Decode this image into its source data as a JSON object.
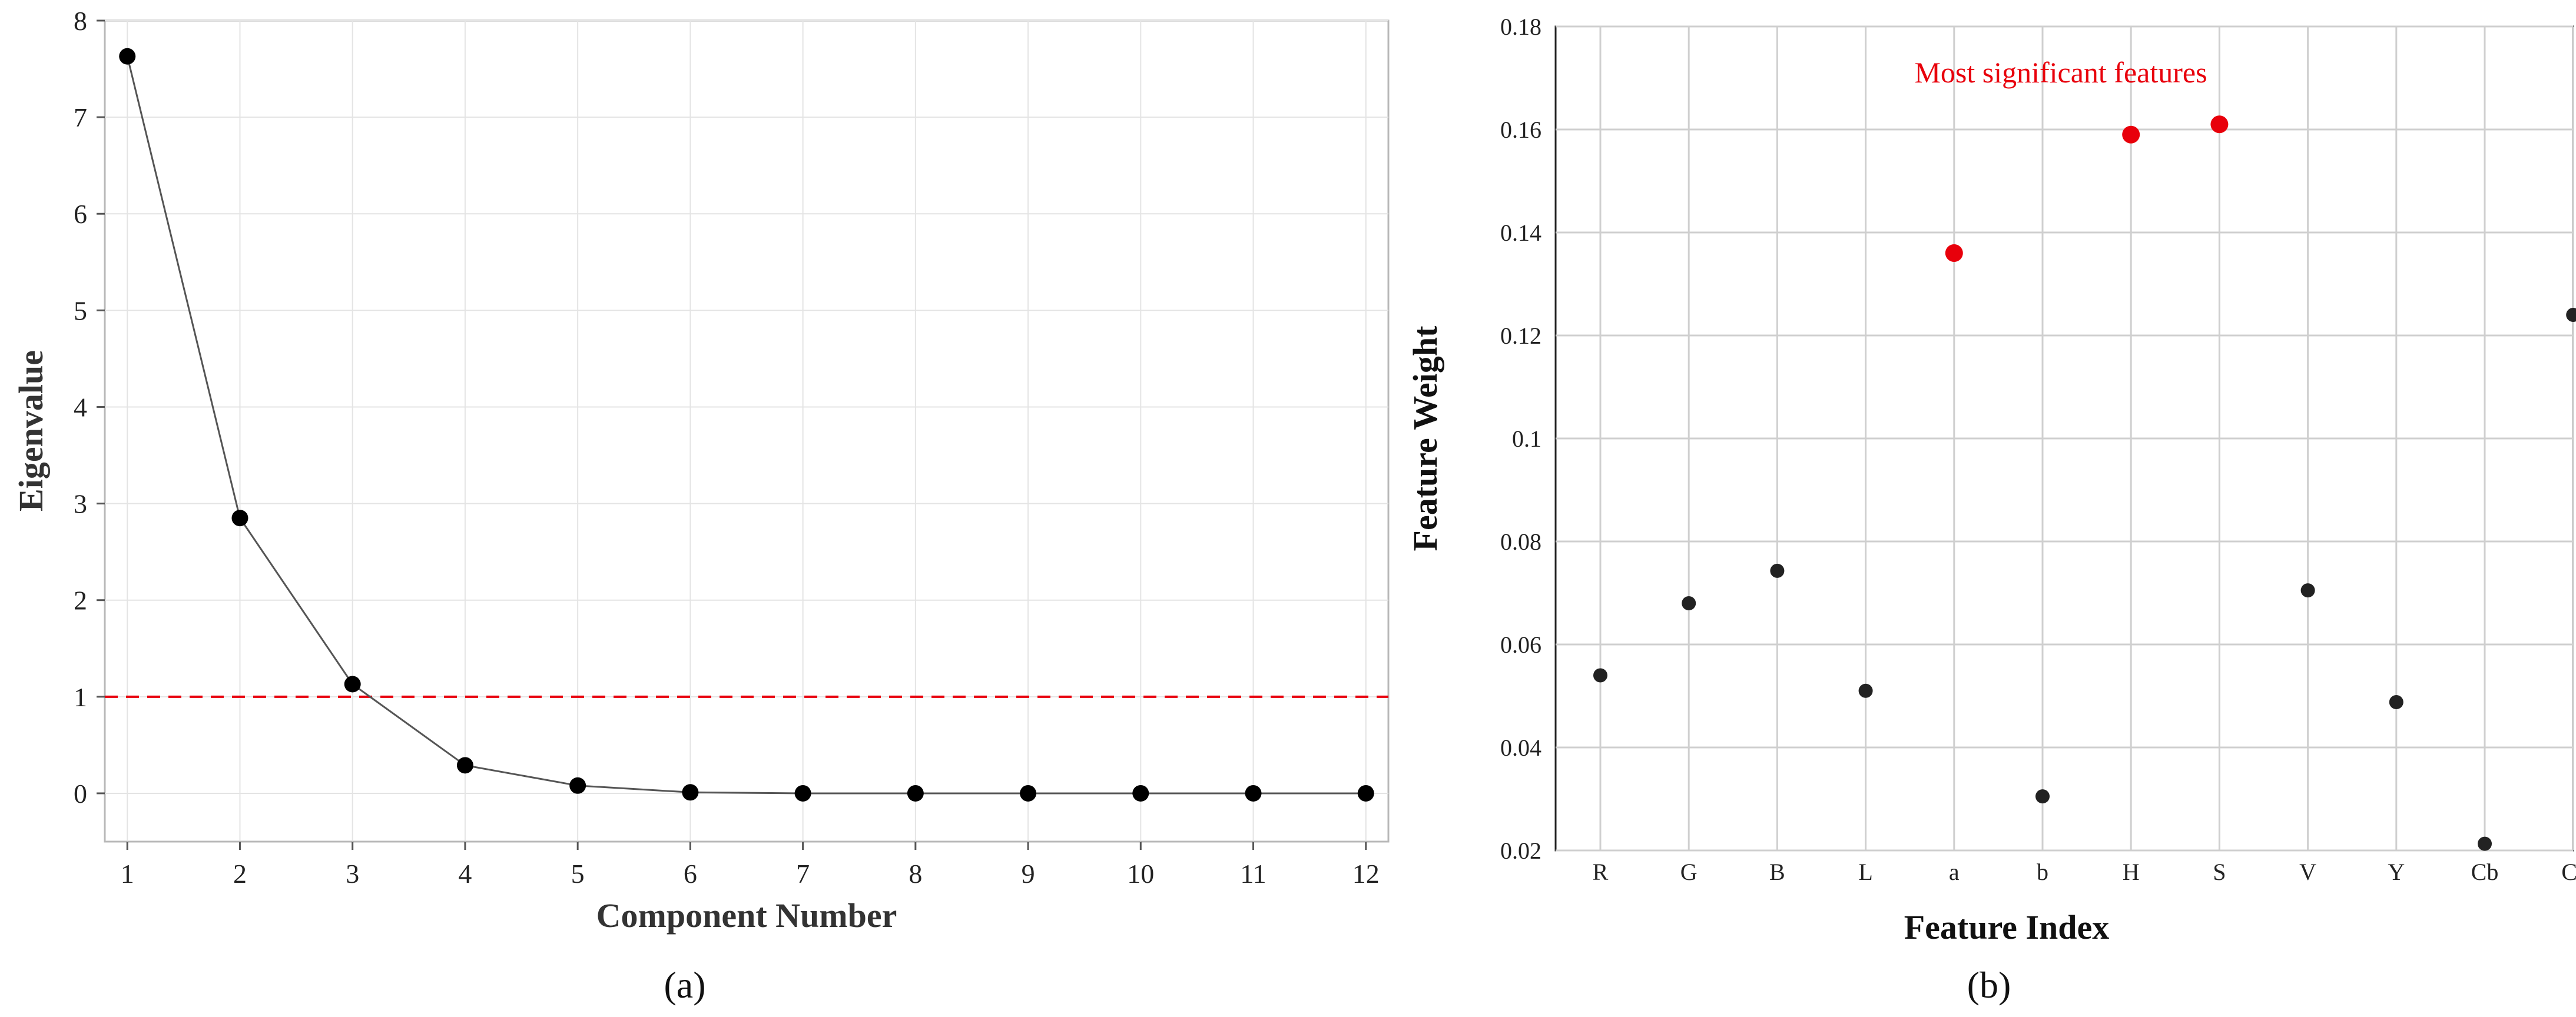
{
  "chart_data": [
    {
      "type": "line",
      "panel_label": "(a)",
      "xlabel": "Component Number",
      "ylabel": "Eigenvalue",
      "xlim": [
        0.8,
        12.2
      ],
      "ylim": [
        -0.5,
        8.0
      ],
      "xticks": [
        1,
        2,
        3,
        4,
        5,
        6,
        7,
        8,
        9,
        10,
        11,
        12
      ],
      "yticks": [
        0,
        1,
        2,
        3,
        4,
        5,
        6,
        7,
        8
      ],
      "grid": true,
      "x": [
        1,
        2,
        3,
        4,
        5,
        6,
        7,
        8,
        9,
        10,
        11,
        12
      ],
      "values": [
        7.63,
        2.85,
        1.13,
        0.29,
        0.08,
        0.01,
        0.0,
        0.0,
        0.0,
        0.0,
        0.0,
        0.0
      ],
      "reference_line": {
        "y": 1,
        "style": "dashed",
        "color": "#e8000b"
      },
      "colors": {
        "line": "#555555",
        "marker": "#000000"
      }
    },
    {
      "type": "scatter",
      "panel_label": "(b)",
      "xlabel": "Feature Index",
      "ylabel": "Feature Weight",
      "categories": [
        "R",
        "G",
        "B",
        "L",
        "a",
        "b",
        "H",
        "S",
        "V",
        "Y",
        "Cb",
        "Cr"
      ],
      "values": [
        0.054,
        0.068,
        0.0743,
        0.051,
        0.136,
        0.0305,
        0.159,
        0.161,
        0.0705,
        0.0488,
        0.0213,
        0.124
      ],
      "highlighted": [
        "a",
        "H",
        "S"
      ],
      "annotation": "Most significant features",
      "ylim": [
        0.02,
        0.18
      ],
      "yticks": [
        "0.02",
        "0.04",
        "0.06",
        "0.08",
        "0.1",
        "0.12",
        "0.14",
        "0.16",
        "0.18"
      ],
      "grid": true,
      "colors": {
        "marker": "#222222",
        "highlight": "#e8000b"
      }
    }
  ]
}
